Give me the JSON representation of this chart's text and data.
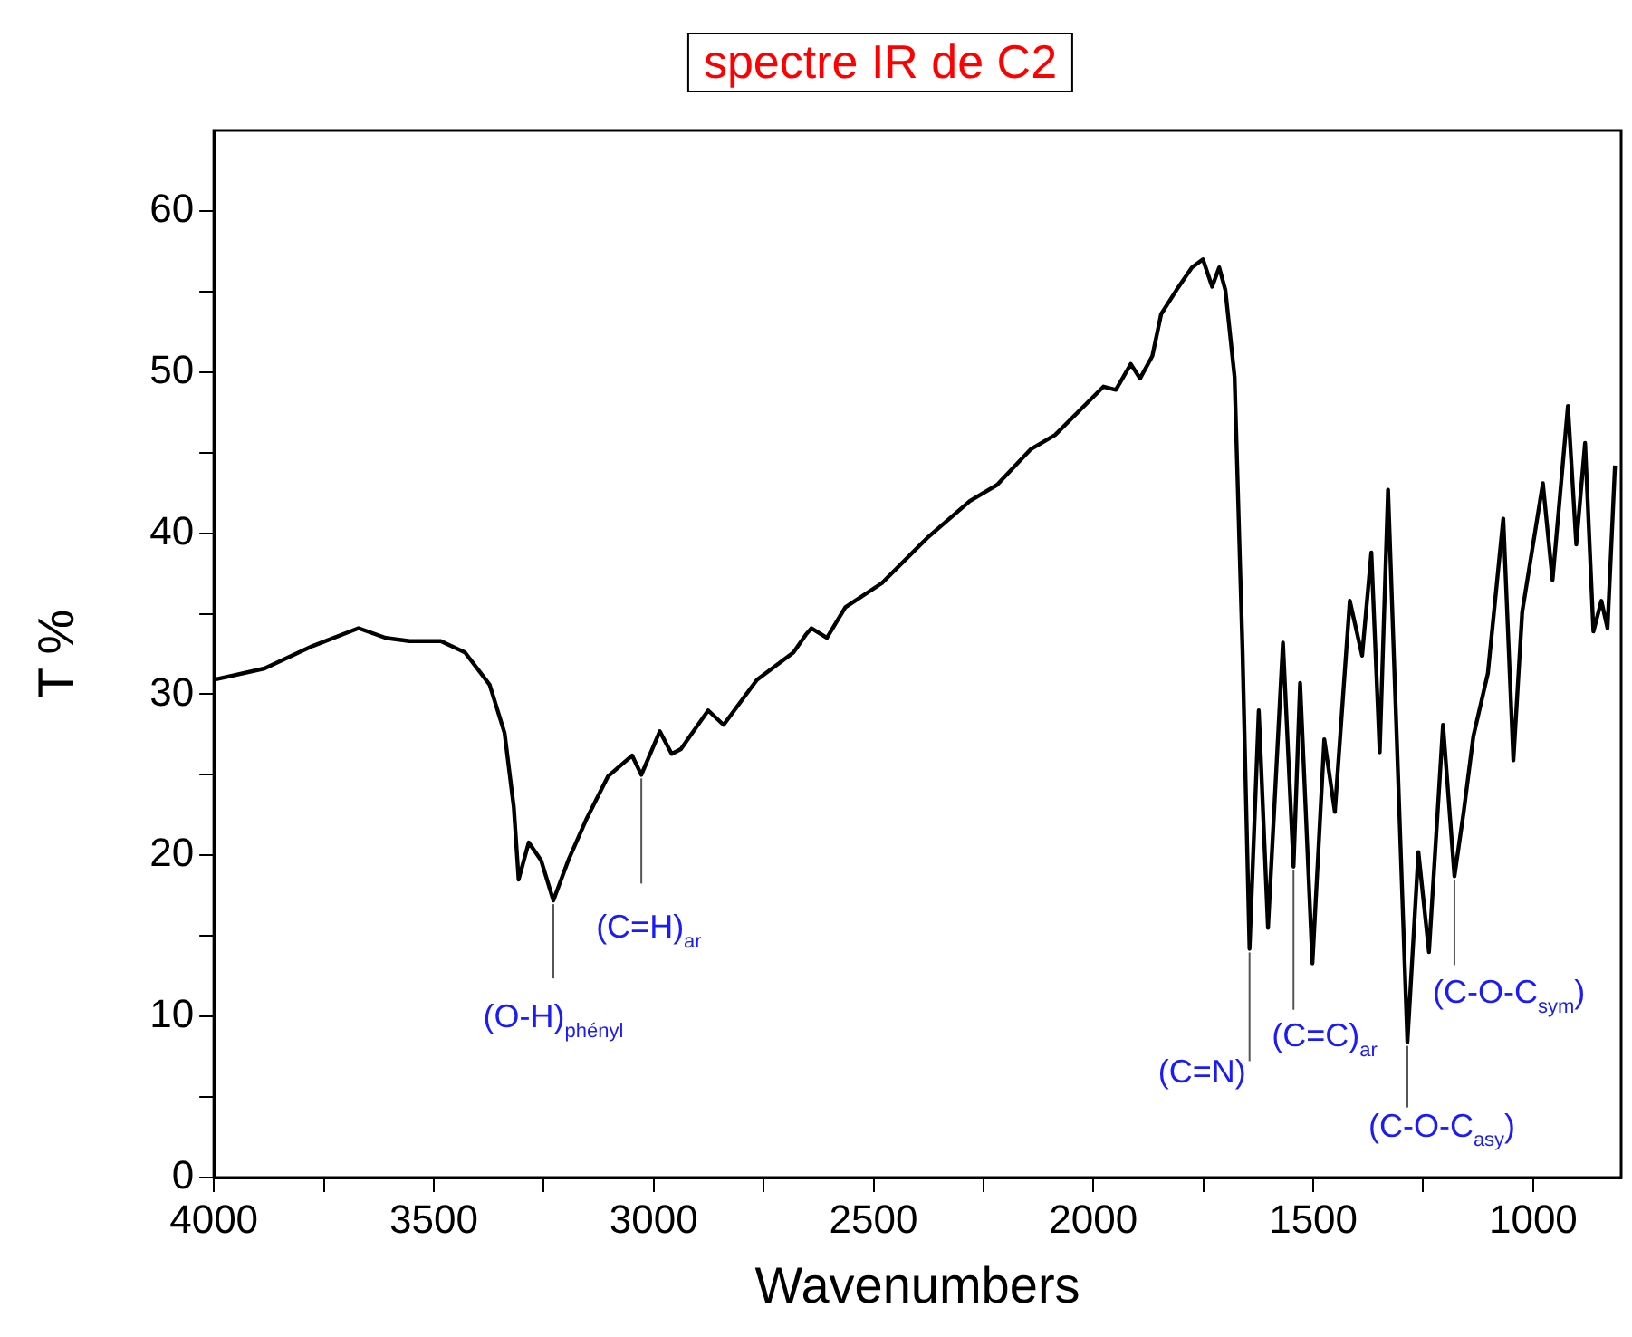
{
  "chart_data": {
    "type": "line",
    "title": "spectre IR de C2",
    "xlabel": "Wavenumbers",
    "ylabel": "T %",
    "xlim": [
      4000,
      800
    ],
    "ylim": [
      0,
      65
    ],
    "xticks": [
      4000,
      {
        "value": 3750,
        "label": null
      },
      3500,
      {
        "value": 3250,
        "label": null
      },
      3000,
      {
        "value": 2750,
        "label": null
      },
      2500,
      {
        "value": 2250,
        "label": null
      },
      2000,
      {
        "value": 1750,
        "label": null
      },
      1500,
      {
        "value": 1250,
        "label": null
      },
      1000
    ],
    "yticks": [
      0,
      {
        "value": 5,
        "label": null
      },
      10,
      {
        "value": 15,
        "label": null
      },
      20,
      {
        "value": 25,
        "label": null
      },
      30,
      {
        "value": 35,
        "label": null
      },
      40,
      {
        "value": 45,
        "label": null
      },
      50,
      {
        "value": 55,
        "label": null
      },
      60
    ],
    "grid": false,
    "legend": false,
    "marker": "none",
    "line_style": "solid",
    "x": [
      4000,
      3885,
      3775,
      3671,
      3609,
      3555,
      3484,
      3429,
      3373,
      3339,
      3318,
      3307,
      3284,
      3256,
      3228,
      3194,
      3152,
      3104,
      3049,
      3028,
      2986,
      2959,
      2938,
      2876,
      2841,
      2765,
      2682,
      2654,
      2641,
      2606,
      2564,
      2481,
      2378,
      2281,
      2219,
      2143,
      2087,
      1977,
      1949,
      1915,
      1894,
      1866,
      1846,
      1811,
      1776,
      1751,
      1730,
      1714,
      1700,
      1679,
      1661,
      1645,
      1624,
      1603,
      1569,
      1545,
      1530,
      1502,
      1475,
      1451,
      1417,
      1389,
      1368,
      1349,
      1330,
      1286,
      1261,
      1237,
      1205,
      1179,
      1158,
      1136,
      1103,
      1068,
      1045,
      1025,
      978,
      956,
      921,
      902,
      882,
      863,
      845,
      831,
      814
    ],
    "series": [
      {
        "color": "#000000",
        "values": [
          30.9,
          31.6,
          33.0,
          34.1,
          33.5,
          33.3,
          33.3,
          32.6,
          30.6,
          27.6,
          23.0,
          18.5,
          20.8,
          19.7,
          17.2,
          19.7,
          22.3,
          24.9,
          26.2,
          25.0,
          27.7,
          26.3,
          26.6,
          29.0,
          28.1,
          30.9,
          32.6,
          33.7,
          34.1,
          33.5,
          35.4,
          36.9,
          39.7,
          42.0,
          43.0,
          45.2,
          46.1,
          49.1,
          48.9,
          50.5,
          49.6,
          51.0,
          53.6,
          55.1,
          56.5,
          57.0,
          55.3,
          56.5,
          55.1,
          49.7,
          32.8,
          14.2,
          29.0,
          15.5,
          33.2,
          19.3,
          30.7,
          13.3,
          27.2,
          22.7,
          35.8,
          32.4,
          38.8,
          26.4,
          42.7,
          8.4,
          20.2,
          14.0,
          28.1,
          18.7,
          22.7,
          27.4,
          31.3,
          40.9,
          25.9,
          35.1,
          43.1,
          37.1,
          47.9,
          39.3,
          45.6,
          33.9,
          35.8,
          34.1,
          44.2
        ]
      }
    ],
    "annotations": [
      {
        "text": "(O-H)$_{phényl}$",
        "x": 3228,
        "y": 17.2
      },
      {
        "text": "(C=H)$_{ar}$",
        "x": 3028,
        "y": 25.0
      },
      {
        "text": "(C=N)",
        "x": 1645,
        "y": 14.2
      },
      {
        "text": "(C=C)$_{ar}$",
        "x": 1545,
        "y": 19.3
      },
      {
        "text": "(C-O-C$_{asy}$)",
        "x": 1286,
        "y": 8.4
      },
      {
        "text": "(C-O-C$_{sym}$)",
        "x": 1179,
        "y": 18.7
      }
    ]
  }
}
